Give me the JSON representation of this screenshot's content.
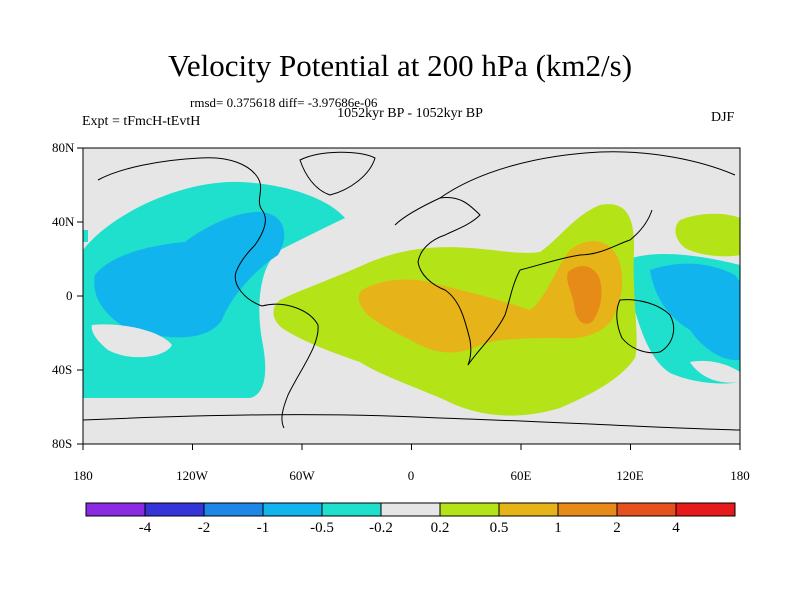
{
  "title": "Velocity Potential at 200 hPa (km2/s)",
  "stats": "rmsd= 0.375618 diff= -3.97686e-06",
  "period": "1052kyr BP - 1052kyr BP",
  "experiment": "Expt = tFmcH-tEvtH",
  "season": "DJF",
  "y_axis": {
    "labels": [
      "80N",
      "40N",
      "0",
      "40S",
      "80S"
    ]
  },
  "x_axis": {
    "labels": [
      "180",
      "120W",
      "60W",
      "0",
      "60E",
      "120E",
      "180"
    ]
  },
  "colorbar": {
    "labels": [
      "-4",
      "-2",
      "-1",
      "-0.5",
      "-0.2",
      "0.2",
      "0.5",
      "1",
      "2",
      "4"
    ],
    "colors": [
      "#8a2be2",
      "#3434d8",
      "#1e86e6",
      "#12b4ee",
      "#1fe0cc",
      "#e6e6e6",
      "#b4e318",
      "#e6b418",
      "#e68a18",
      "#e6501e",
      "#e61a1a"
    ]
  },
  "field_colors": {
    "neutral": "#e6e6e6",
    "light_blue_green": "#1fe0cc",
    "medium_blue": "#12b4ee",
    "light_green": "#b4e318",
    "light_orange": "#e6b418",
    "orange": "#e68a18"
  }
}
